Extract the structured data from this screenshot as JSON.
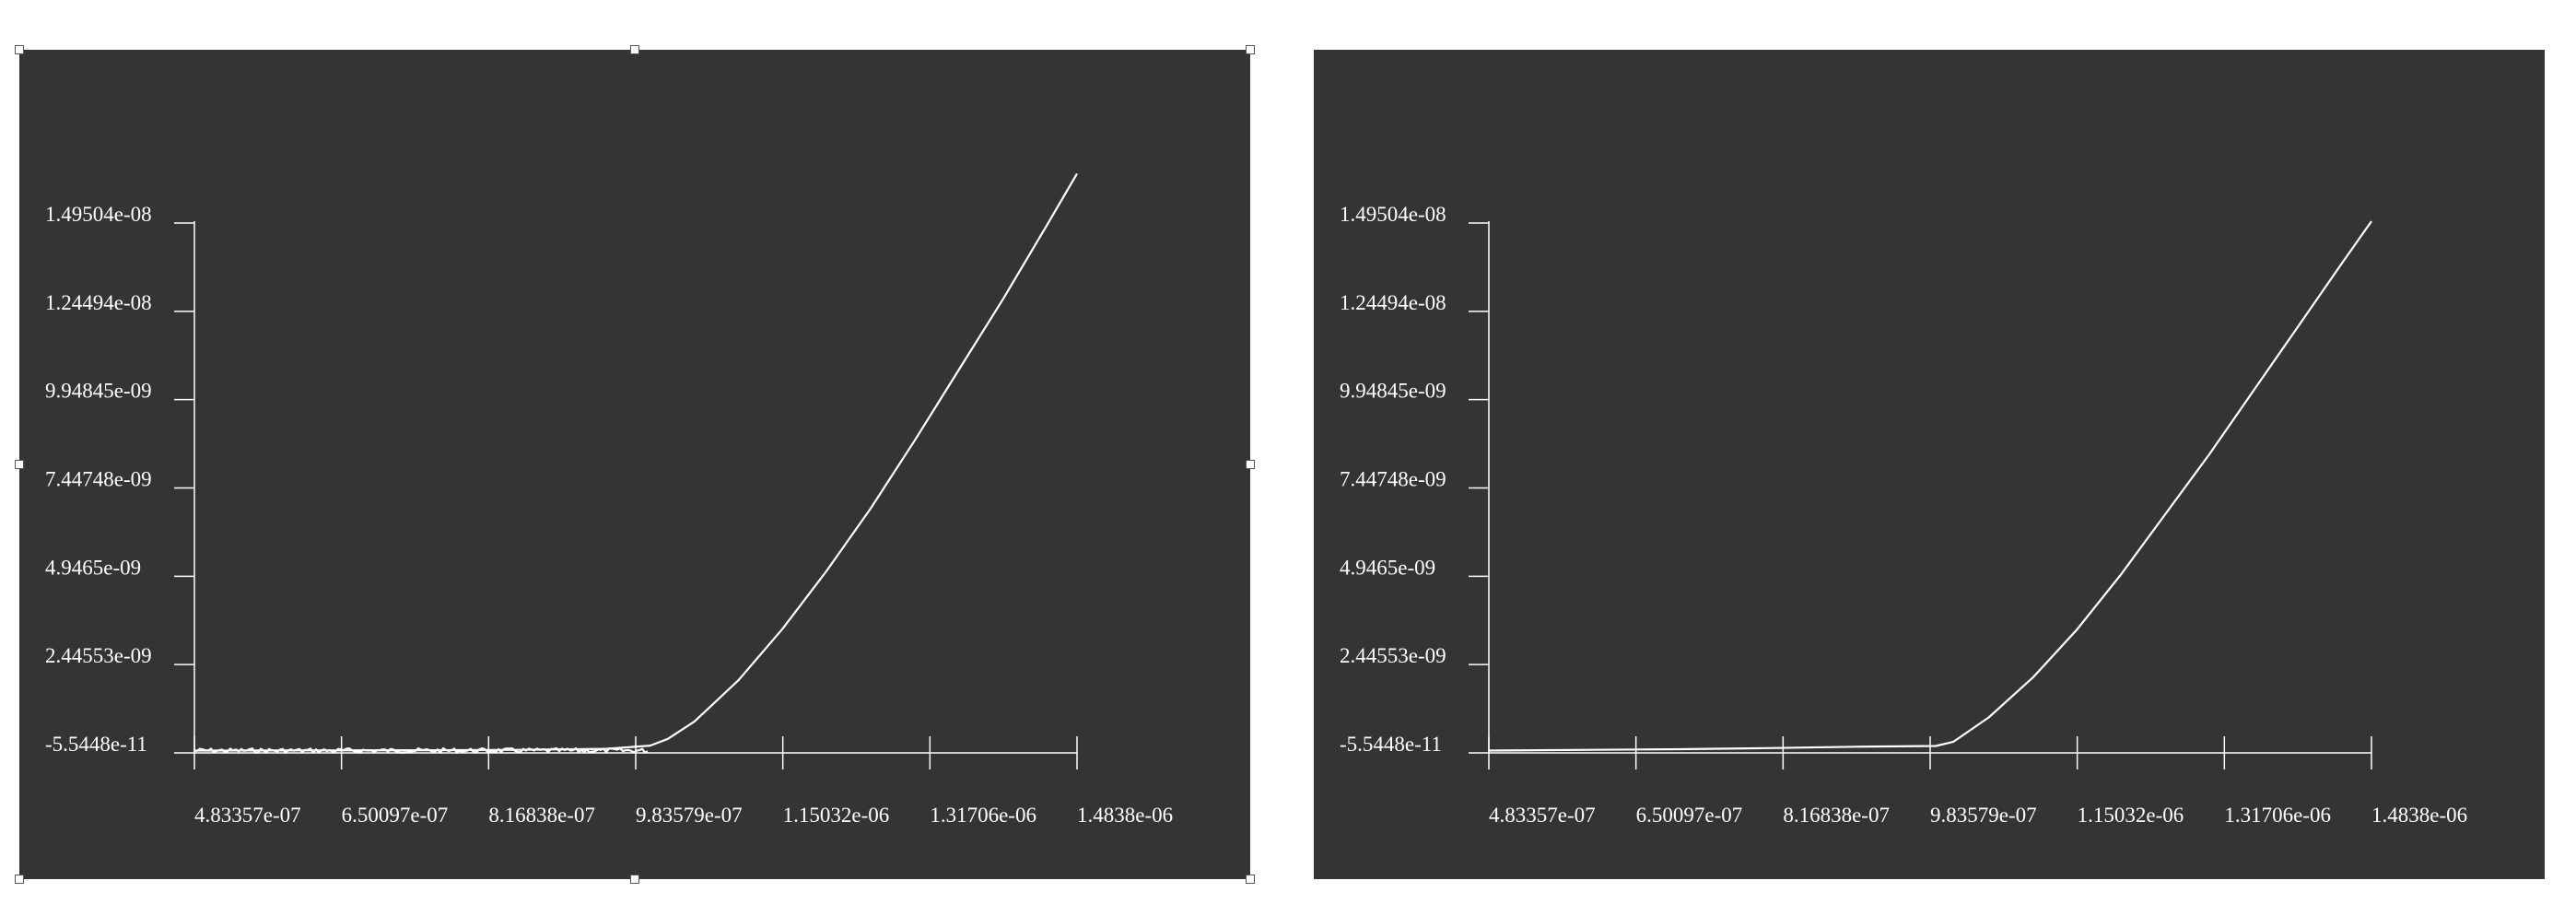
{
  "chart_data": [
    {
      "type": "line",
      "title": "",
      "xlabel": "",
      "ylabel": "",
      "xlim": [
        4.83357e-07,
        1.4838e-06
      ],
      "ylim": [
        -5.5448e-11,
        1.49504e-08
      ],
      "x_ticks": [
        "4.83357e-07",
        "6.50097e-07",
        "8.16838e-07",
        "9.83579e-07",
        "1.15032e-06",
        "1.31706e-06",
        "1.4838e-06"
      ],
      "y_ticks": [
        "1.49504e-08",
        "1.24494e-08",
        "9.94845e-09",
        "7.44748e-09",
        "4.9465e-09",
        "2.44553e-09",
        "-5.5448e-11"
      ],
      "grid": false,
      "selected": true,
      "noisy_baseline": true,
      "series": [
        {
          "x": [
            4.83357e-07,
            5.5e-07,
            6.5e-07,
            7.5e-07,
            8.5e-07,
            9.5e-07,
            1e-06,
            1.02e-06,
            1.05e-06,
            1.1e-06,
            1.15e-06,
            1.2e-06,
            1.25e-06,
            1.3e-06,
            1.35e-06,
            1.4e-06,
            1.45e-06,
            1.4838e-06
          ],
          "y": [
            1e-11,
            1.2e-11,
            1.5e-11,
            2e-11,
            3e-11,
            6e-11,
            1.5e-10,
            3.4e-10,
            8.3e-10,
            2e-09,
            3.46e-09,
            5.1e-09,
            6.87e-09,
            8.8e-09,
            1.08e-08,
            1.28e-08,
            1.49e-08,
            1.635e-08
          ]
        }
      ]
    },
    {
      "type": "line",
      "title": "",
      "xlabel": "",
      "ylabel": "",
      "xlim": [
        4.83357e-07,
        1.4838e-06
      ],
      "ylim": [
        -5.5448e-11,
        1.49504e-08
      ],
      "x_ticks": [
        "4.83357e-07",
        "6.50097e-07",
        "8.16838e-07",
        "9.83579e-07",
        "1.15032e-06",
        "1.31706e-06",
        "1.4838e-06"
      ],
      "y_ticks": [
        "1.49504e-08",
        "1.24494e-08",
        "9.94845e-09",
        "7.44748e-09",
        "4.9465e-09",
        "2.44553e-09",
        "-5.5448e-11"
      ],
      "grid": false,
      "selected": false,
      "noisy_baseline": false,
      "series": [
        {
          "x": [
            4.83357e-07,
            6e-07,
            7e-07,
            8e-07,
            9e-07,
            9.9e-07,
            1.01e-06,
            1.05e-06,
            1.1e-06,
            1.15e-06,
            1.2e-06,
            1.25e-06,
            1.3e-06,
            1.35e-06,
            1.4e-06,
            1.45e-06,
            1.4838e-06
          ],
          "y": [
            1e-11,
            3e-11,
            5e-11,
            8e-11,
            1.2e-10,
            1.4e-10,
            2.6e-10,
            9.5e-10,
            2.08e-09,
            3.44e-09,
            5e-09,
            6.7e-09,
            8.4e-09,
            1.02e-08,
            1.2e-08,
            1.38e-08,
            1.5e-08
          ]
        }
      ]
    }
  ]
}
